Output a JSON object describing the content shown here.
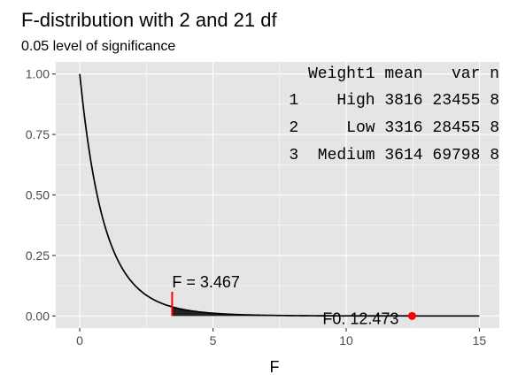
{
  "chart_data": {
    "type": "line",
    "title": "F-distribution with 2 and 21 df",
    "subtitle": "0.05 level of significance",
    "xlabel": "F",
    "ylabel": "",
    "xlim": [
      -0.9,
      15.75
    ],
    "ylim": [
      -0.05,
      1.05
    ],
    "x_ticks": [
      0,
      5,
      10,
      15
    ],
    "y_ticks": [
      0.0,
      0.25,
      0.5,
      0.75,
      1.0
    ],
    "x_tick_labels": [
      "0",
      "5",
      "10",
      "15"
    ],
    "y_tick_labels": [
      "0.00",
      "0.25",
      "0.50",
      "0.75",
      "1.00"
    ],
    "grid": true,
    "df1": 2,
    "df2": 21,
    "critical_value": 3.467,
    "critical_label": "F = 3.467",
    "observed_value": 12.473,
    "observed_label": "F0: 12.473",
    "curve_x_range": [
      0,
      15
    ],
    "colors": {
      "curve": "#000000",
      "critical": "#ff0000",
      "observed": "#ff0000",
      "shade": "#222222",
      "panel": "#e5e5e5",
      "grid": "#ffffff"
    },
    "table": {
      "header": "Weight1 mean   var n",
      "rows": [
        "1    High 3816 23455 8",
        "2     Low 3316 28455 8",
        "3  Medium 3614 69798 8"
      ]
    }
  }
}
